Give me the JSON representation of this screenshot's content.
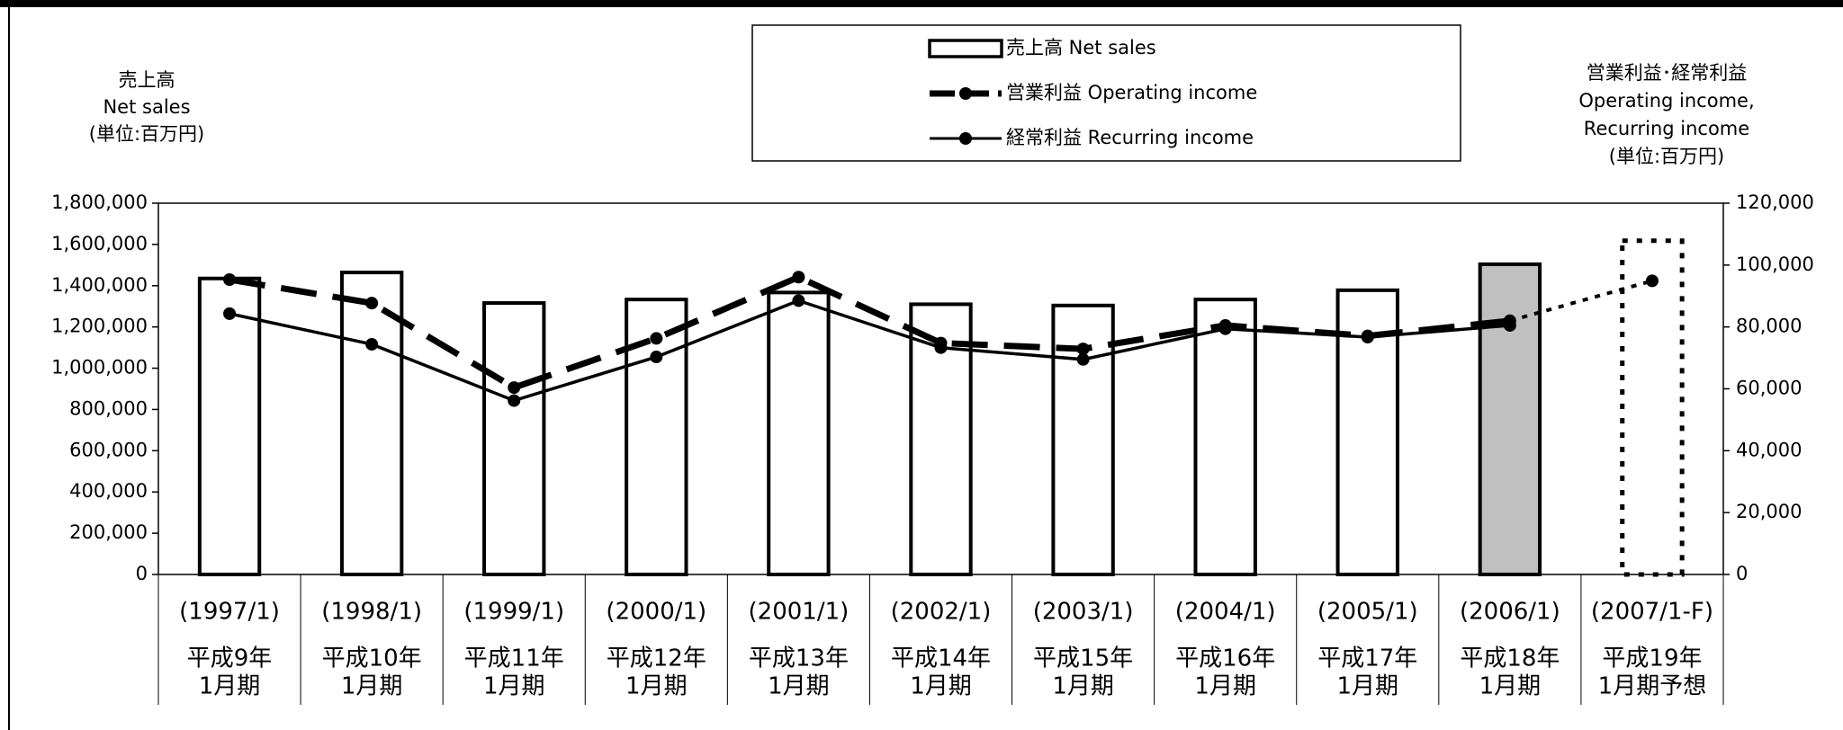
{
  "chart_data": {
    "type": "bar-line",
    "y_title": [
      "売上高",
      "Net sales",
      "(単位:百万円)"
    ],
    "y2_title": [
      "営業利益･経常利益",
      "Operating income,",
      "Recurring income",
      "(単位:百万円)"
    ],
    "categories": [
      "(1997/1)",
      "(1998/1)",
      "(1999/1)",
      "(2000/1)",
      "(2001/1)",
      "(2002/1)",
      "(2003/1)",
      "(2004/1)",
      "(2005/1)",
      "(2006/1)",
      "(2007/1-F)"
    ],
    "period_labels": [
      [
        "平成9年",
        "1月期"
      ],
      [
        "平成10年",
        "1月期"
      ],
      [
        "平成11年",
        "1月期"
      ],
      [
        "平成12年",
        "1月期"
      ],
      [
        "平成13年",
        "1月期"
      ],
      [
        "平成14年",
        "1月期"
      ],
      [
        "平成15年",
        "1月期"
      ],
      [
        "平成16年",
        "1月期"
      ],
      [
        "平成17年",
        "1月期"
      ],
      [
        "平成18年",
        "1月期"
      ],
      [
        "平成19年",
        "1月期予想"
      ]
    ],
    "ylim": [
      0,
      1800000
    ],
    "yticks": [
      0,
      {
        "value": 200000,
        "label": "200,000"
      },
      {
        "value": 400000,
        "label": "400,000"
      },
      {
        "value": 600000,
        "label": "600,000"
      },
      {
        "value": 800000,
        "label": "800,000"
      },
      {
        "value": 1000000,
        "label": "1,000,000"
      },
      {
        "value": 1200000,
        "label": "1,200,000"
      },
      {
        "value": 1400000,
        "label": "1,400,000"
      },
      {
        "value": 1600000,
        "label": "1,600,000"
      },
      {
        "value": 1800000,
        "label": "1,800,000"
      }
    ],
    "y2lim": [
      0,
      120000
    ],
    "y2ticks": [
      0,
      {
        "value": 20000,
        "label": "20,000"
      },
      {
        "value": 40000,
        "label": "40,000"
      },
      {
        "value": 60000,
        "label": "60,000"
      },
      {
        "value": 80000,
        "label": "80,000"
      },
      {
        "value": 100000,
        "label": "100,000"
      },
      {
        "value": 120000,
        "label": "120,000"
      }
    ],
    "series": [
      {
        "name": "売上高 Net sales",
        "type": "bar",
        "color": "#000000",
        "fills": [
          "#ffffff",
          "#ffffff",
          "#ffffff",
          "#ffffff",
          "#ffffff",
          "#ffffff",
          "#ffffff",
          "#ffffff",
          "#ffffff",
          "#c0c0c0",
          "none"
        ],
        "styles": [
          "solid",
          "solid",
          "solid",
          "solid",
          "solid",
          "solid",
          "solid",
          "solid",
          "solid",
          "solid",
          "dotted"
        ],
        "values": [
          1435000,
          1464000,
          1316000,
          1333000,
          1367000,
          1310000,
          1304000,
          1333000,
          1378000,
          1504000,
          1618000
        ]
      },
      {
        "name": "営業利益 Operating income",
        "type": "line",
        "axis": "y2",
        "color": "#000000",
        "style": "dashed",
        "values": [
          95300,
          87700,
          60400,
          76300,
          96100,
          74800,
          72900,
          80500,
          77100,
          82000,
          94900
        ]
      },
      {
        "name": "経常利益 Recurring income",
        "type": "line",
        "axis": "y2",
        "color": "#000000",
        "style": "solid",
        "values": [
          84300,
          74400,
          56200,
          70300,
          88500,
          73300,
          69500,
          79400,
          76700,
          80500,
          null
        ]
      }
    ]
  }
}
